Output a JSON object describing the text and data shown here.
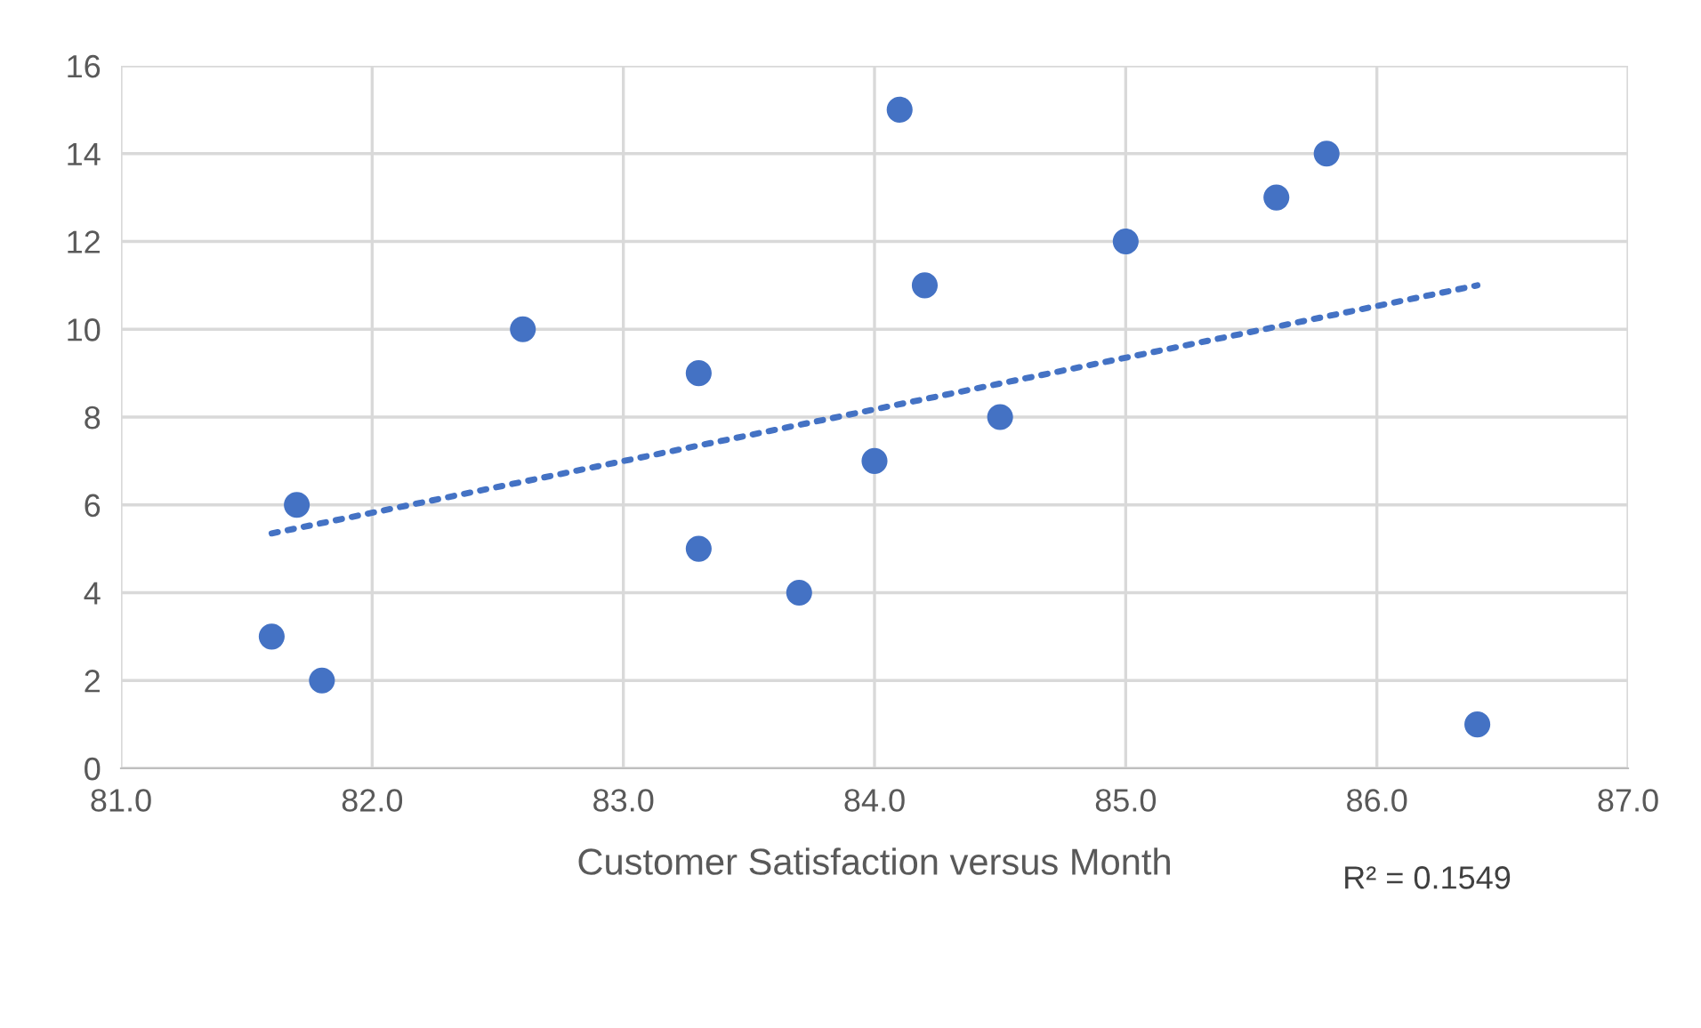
{
  "chart_data": {
    "type": "scatter",
    "xlabel": "Customer Satisfaction versus Month",
    "annotations": [
      "R² = 0.1549"
    ],
    "series": [
      {
        "color": "#4472c4",
        "marker": "circle",
        "x": [
          81.6,
          81.7,
          81.8,
          82.6,
          83.3,
          83.3,
          83.7,
          84.0,
          84.1,
          84.2,
          84.5,
          85.0,
          85.6,
          85.8,
          86.4
        ],
        "values": [
          3,
          6,
          2,
          10,
          9,
          5,
          4,
          7,
          15,
          11,
          8,
          12,
          13,
          14,
          1
        ]
      },
      {
        "type": "line",
        "color": "#4472c4",
        "line_style": "dotted",
        "x": [
          81.6,
          86.4
        ],
        "values": [
          5.35,
          11.0
        ]
      }
    ],
    "xlim": [
      81,
      87
    ],
    "xticks": [
      {
        "value": 81,
        "label": "81.0"
      },
      {
        "value": 82,
        "label": "82.0"
      },
      {
        "value": 83,
        "label": "83.0"
      },
      {
        "value": 84,
        "label": "84.0"
      },
      {
        "value": 85,
        "label": "85.0"
      },
      {
        "value": 86,
        "label": "86.0"
      },
      {
        "value": 87,
        "label": "87.0"
      }
    ],
    "ylim": [
      0,
      16
    ],
    "yticks": [
      0,
      2,
      4,
      6,
      8,
      10,
      12,
      14,
      16
    ],
    "grid": true
  }
}
